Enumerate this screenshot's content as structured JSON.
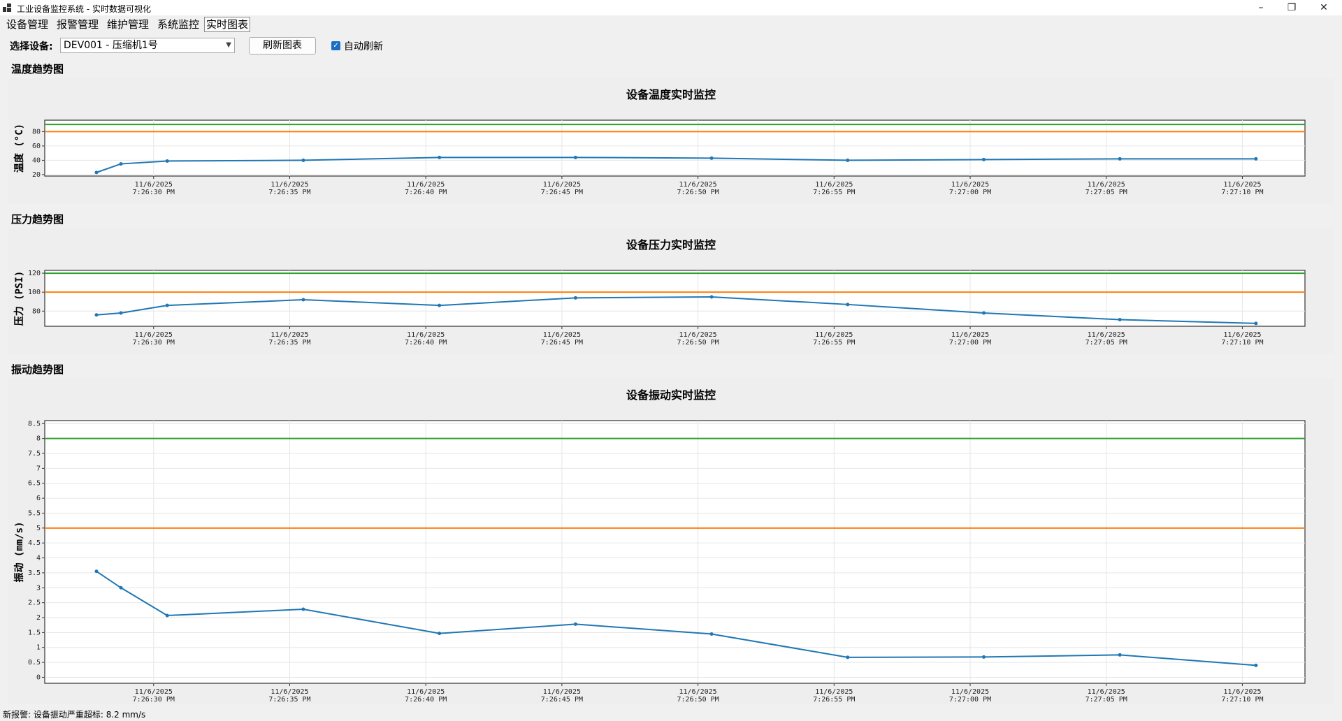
{
  "window": {
    "title": "工业设备监控系统 - 实时数据可视化",
    "controls": {
      "minimize": "–",
      "maximize": "❐",
      "close": "✕"
    }
  },
  "menu": [
    "设备管理",
    "报警管理",
    "维护管理",
    "系统监控",
    "实时图表"
  ],
  "toolbar": {
    "device_label": "选择设备:",
    "device_value": "DEV001 - 压缩机1号",
    "refresh_label": "刷新图表",
    "auto_refresh_label": "自动刷新",
    "auto_refresh_checked": true
  },
  "sections": {
    "temperature": "温度趋势图",
    "pressure": "压力趋势图",
    "vibration": "振动趋势图"
  },
  "status_text": "新报警: 设备振动严重超标: 8.2 mm/s",
  "colors": {
    "series": "#1f77b4",
    "green": "#2ca02c",
    "orange": "#ff7f0e"
  },
  "chart_data": [
    {
      "type": "line",
      "title": "设备温度实时监控",
      "ylabel": "温度 (°C)",
      "ylim": [
        18,
        96
      ],
      "yticks": [
        20,
        40,
        60,
        80
      ],
      "grid": true,
      "xticks": [
        {
          "date": "11/6/2025",
          "time": "7:26:30 PM"
        },
        {
          "date": "11/6/2025",
          "time": "7:26:35 PM"
        },
        {
          "date": "11/6/2025",
          "time": "7:26:40 PM"
        },
        {
          "date": "11/6/2025",
          "time": "7:26:45 PM"
        },
        {
          "date": "11/6/2025",
          "time": "7:26:50 PM"
        },
        {
          "date": "11/6/2025",
          "time": "7:26:55 PM"
        },
        {
          "date": "11/6/2025",
          "time": "7:27:00 PM"
        },
        {
          "date": "11/6/2025",
          "time": "7:27:05 PM"
        },
        {
          "date": "11/6/2025",
          "time": "7:27:10 PM"
        }
      ],
      "x": [
        "7:26:28 PM",
        "7:26:29 PM",
        "7:26:30.5 PM",
        "7:26:35.5 PM",
        "7:26:40.5 PM",
        "7:26:45.5 PM",
        "7:26:50.5 PM",
        "7:26:55.5 PM",
        "7:27:00.5 PM",
        "7:27:05.5 PM",
        "7:27:10.5 PM"
      ],
      "x_seconds_hint": [
        27.9,
        28.8,
        30.5,
        35.5,
        40.5,
        45.5,
        50.5,
        55.5,
        60.5,
        65.5,
        70.5
      ],
      "values": [
        23,
        35,
        39,
        40,
        44,
        44,
        43,
        40,
        41,
        42,
        42
      ],
      "thresholds": [
        {
          "value": 90,
          "color": "green"
        },
        {
          "value": 80,
          "color": "orange"
        }
      ]
    },
    {
      "type": "line",
      "title": "设备压力实时监控",
      "ylabel": "压力 (PSI)",
      "ylim": [
        64,
        123
      ],
      "yticks": [
        80,
        100,
        120
      ],
      "grid": true,
      "xticks": [
        {
          "date": "11/6/2025",
          "time": "7:26:30 PM"
        },
        {
          "date": "11/6/2025",
          "time": "7:26:35 PM"
        },
        {
          "date": "11/6/2025",
          "time": "7:26:40 PM"
        },
        {
          "date": "11/6/2025",
          "time": "7:26:45 PM"
        },
        {
          "date": "11/6/2025",
          "time": "7:26:50 PM"
        },
        {
          "date": "11/6/2025",
          "time": "7:26:55 PM"
        },
        {
          "date": "11/6/2025",
          "time": "7:27:00 PM"
        },
        {
          "date": "11/6/2025",
          "time": "7:27:05 PM"
        },
        {
          "date": "11/6/2025",
          "time": "7:27:10 PM"
        }
      ],
      "x_seconds_hint": [
        27.9,
        28.8,
        30.5,
        35.5,
        40.5,
        45.5,
        50.5,
        55.5,
        60.5,
        65.5,
        70.5
      ],
      "values": [
        76,
        78,
        86,
        92,
        86,
        94,
        95,
        87,
        78,
        71,
        67
      ],
      "thresholds": [
        {
          "value": 120,
          "color": "green"
        },
        {
          "value": 100,
          "color": "orange"
        }
      ]
    },
    {
      "type": "line",
      "title": "设备振动实时监控",
      "ylabel": "振动 (mm/s)",
      "ylim": [
        -0.2,
        8.6
      ],
      "yticks": [
        0,
        0.5,
        1,
        1.5,
        2,
        2.5,
        3,
        3.5,
        4,
        4.5,
        5,
        5.5,
        6,
        6.5,
        7,
        7.5,
        8,
        8.5
      ],
      "grid": true,
      "xticks": [
        {
          "date": "11/6/2025",
          "time": "7:26:30 PM"
        },
        {
          "date": "11/6/2025",
          "time": "7:26:35 PM"
        },
        {
          "date": "11/6/2025",
          "time": "7:26:40 PM"
        },
        {
          "date": "11/6/2025",
          "time": "7:26:45 PM"
        },
        {
          "date": "11/6/2025",
          "time": "7:26:50 PM"
        },
        {
          "date": "11/6/2025",
          "time": "7:26:55 PM"
        },
        {
          "date": "11/6/2025",
          "time": "7:27:00 PM"
        },
        {
          "date": "11/6/2025",
          "time": "7:27:05 PM"
        },
        {
          "date": "11/6/2025",
          "time": "7:27:10 PM"
        }
      ],
      "x_seconds_hint": [
        27.9,
        28.8,
        30.5,
        35.5,
        40.5,
        45.5,
        50.5,
        55.5,
        60.5,
        65.5,
        70.5
      ],
      "values": [
        3.55,
        3.0,
        2.07,
        2.28,
        1.47,
        1.78,
        1.45,
        0.67,
        0.68,
        0.75,
        0.4
      ],
      "thresholds": [
        {
          "value": 8,
          "color": "green"
        },
        {
          "value": 5,
          "color": "orange"
        }
      ]
    }
  ]
}
